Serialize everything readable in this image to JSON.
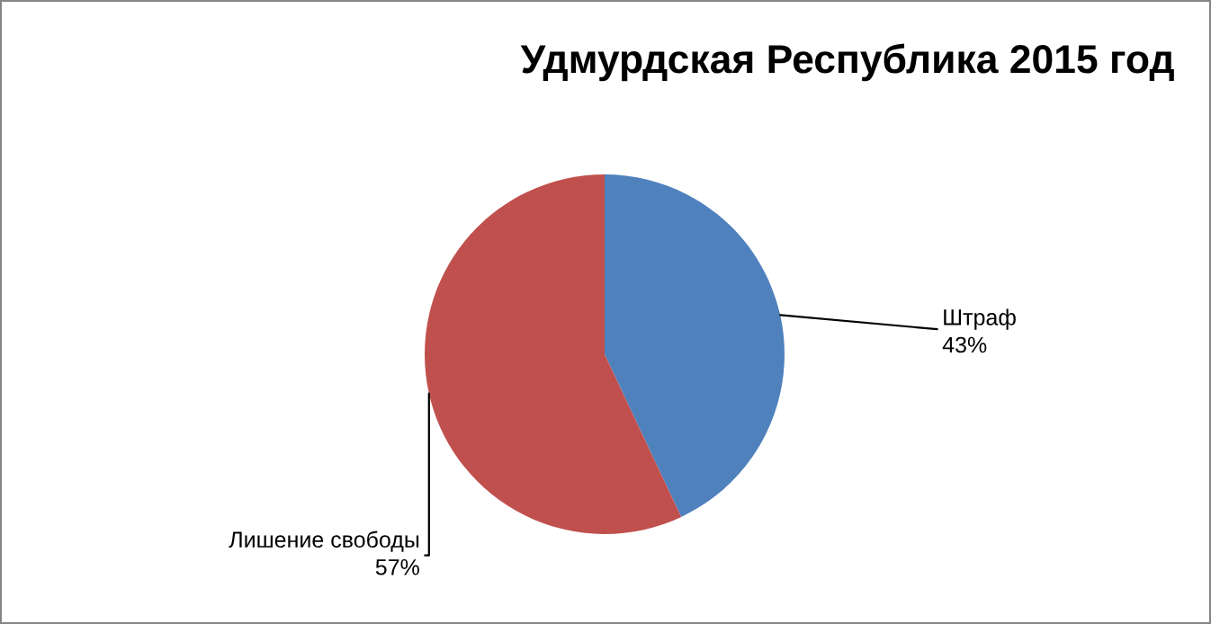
{
  "chart_data": {
    "type": "pie",
    "title": "Удмурдская Республика 2015 год",
    "categories": [
      "Штраф",
      "Лишение свободы"
    ],
    "values": [
      43,
      57
    ],
    "value_labels": [
      "43%",
      "57%"
    ],
    "colors": [
      "#4f81bd",
      "#c0504d"
    ],
    "legend": false
  }
}
